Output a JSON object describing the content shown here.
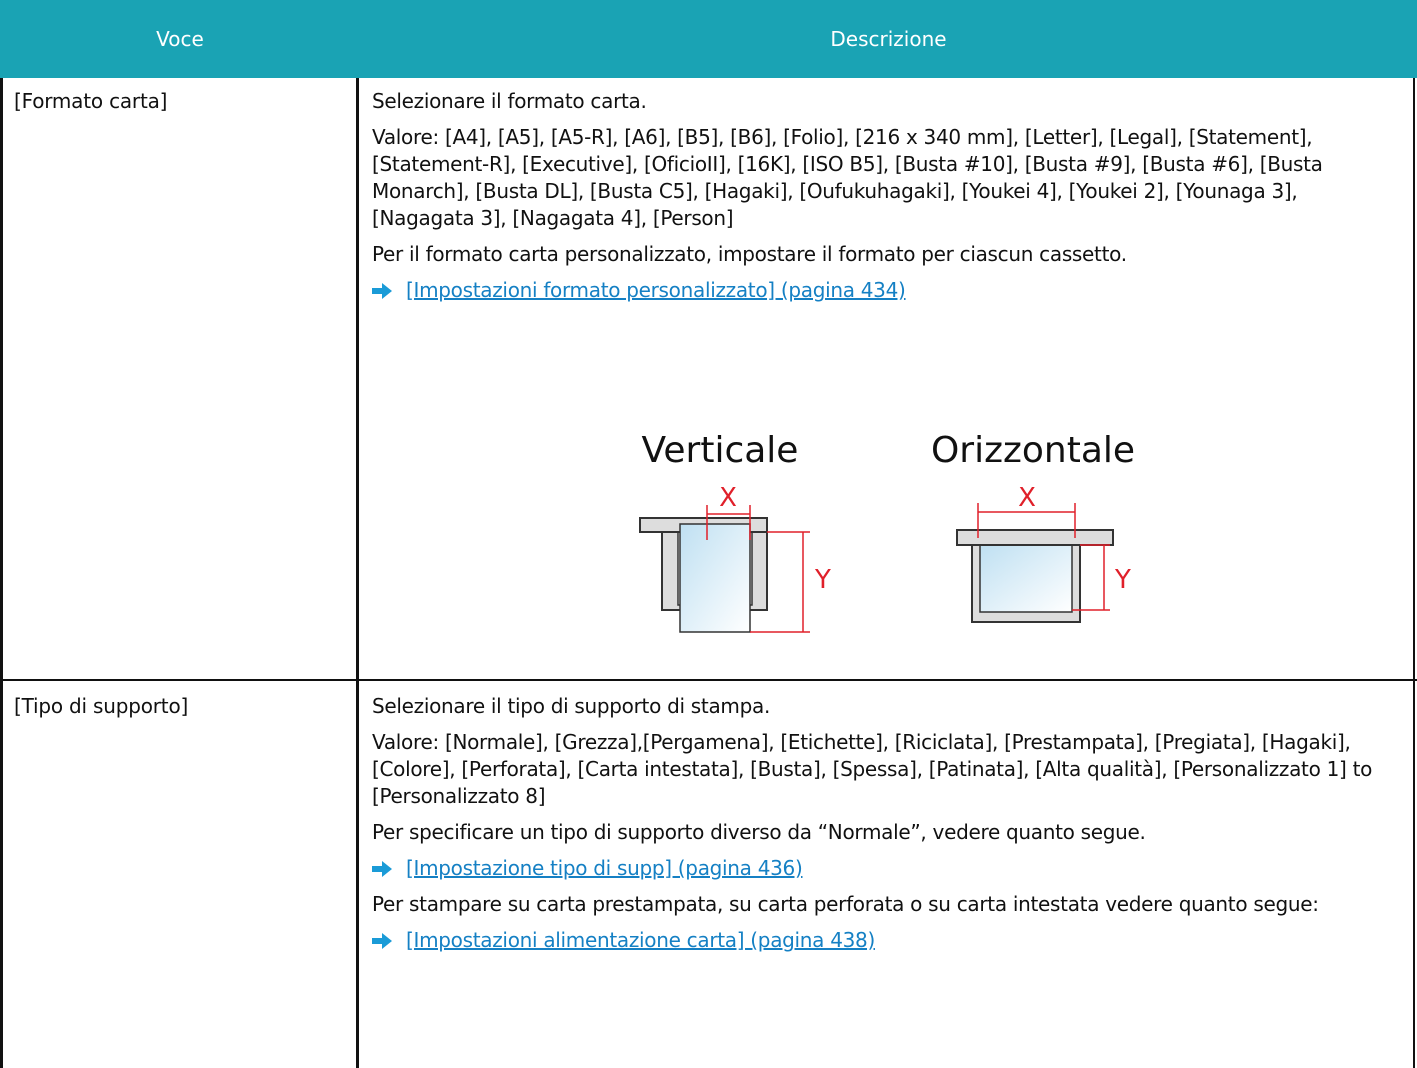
{
  "table": {
    "headers": [
      "Voce",
      "Descrizione"
    ],
    "rows": [
      {
        "item": "[Formato carta]",
        "blocks": [
          {
            "text": "Selezionare il formato carta."
          },
          {
            "text": "Valore: [A4], [A5], [A5-R], [A6], [B5], [B6], [Folio], [216 x 340 mm], [Letter], [Legal], [Statement], [Statement-R], [Executive], [OficioII], [16K], [ISO B5], [Busta #10], [Busta #9], [Busta #6], [Busta Monarch], [Busta DL], [Busta C5], [Hagaki], [Oufukuhagaki], [Youkei 4], [Youkei 2], [Younaga 3], [Nagagata 3], [Nagagata 4], [Person]"
          },
          {
            "text": "Per il formato carta personalizzato, impostare il formato per ciascun cassetto."
          },
          {
            "link": "[Impostazioni formato personalizzato] (pagina 434)"
          }
        ],
        "figure": {
          "vertical": "Verticale",
          "horizontal": "Orizzontale",
          "x": "X",
          "y": "Y"
        }
      },
      {
        "item": "[Tipo di supporto]",
        "blocks": [
          {
            "text": "Selezionare il tipo di supporto di stampa."
          },
          {
            "text": "Valore: [Normale], [Grezza],[Pergamena], [Etichette], [Riciclata], [Prestampata], [Pregiata], [Hagaki], [Colore], [Perforata], [Carta intestata], [Busta], [Spessa], [Patinata], [Alta qualità], [Personalizzato 1] to [Personalizzato 8]"
          },
          {
            "text": "Per specificare un tipo di supporto diverso da “Normale”, vedere quanto segue."
          },
          {
            "link": "[Impostazione tipo di supp] (pagina 436)"
          },
          {
            "text": "Per stampare su carta prestampata, su carta perforata o su carta intestata vedere quanto segue:"
          },
          {
            "link": "[Impostazioni alimentazione carta] (pagina 438)"
          }
        ]
      }
    ]
  }
}
